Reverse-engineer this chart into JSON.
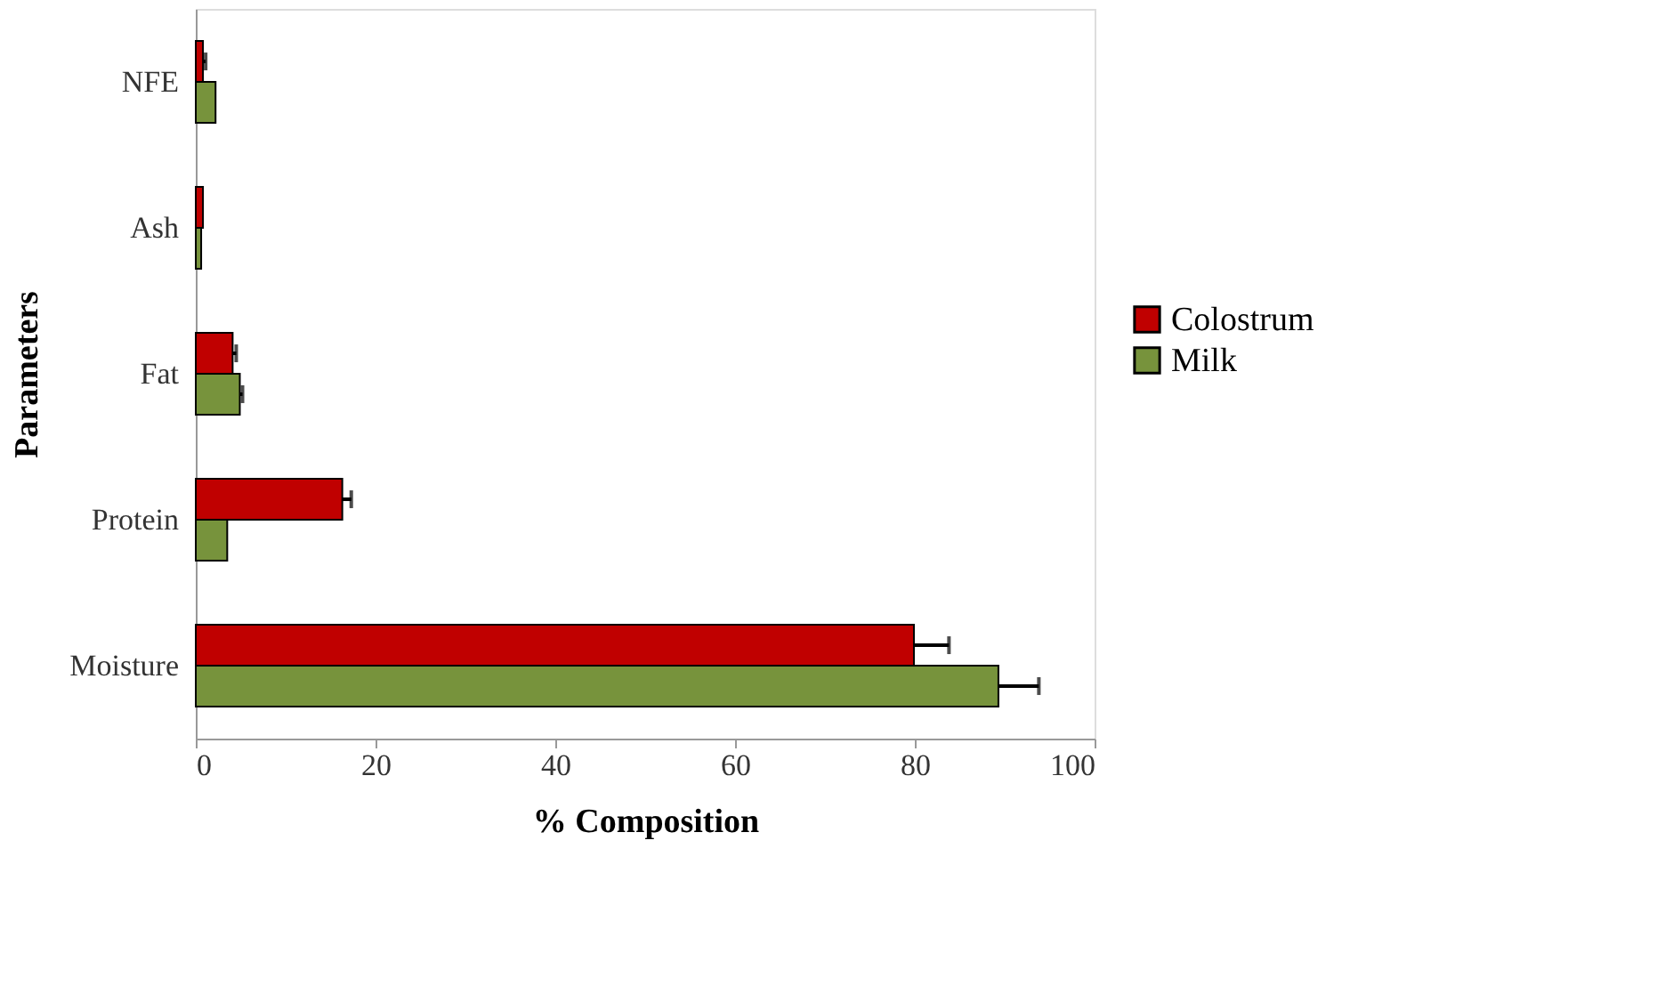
{
  "chart_data": {
    "type": "bar",
    "orientation": "horizontal",
    "xlabel": "% Composition",
    "ylabel": "Parameters",
    "categories": [
      "NFE",
      "Ash",
      "Fat",
      "Protein",
      "Moisture"
    ],
    "series": [
      {
        "name": "Colostrum",
        "color": "#c00000",
        "values": [
          0.8,
          0.8,
          4.1,
          16.3,
          79.9
        ],
        "errors": [
          [
            0.8,
            1.1
          ],
          null,
          [
            4.1,
            4.5
          ],
          [
            16.3,
            17.3
          ],
          [
            79.9,
            83.8
          ]
        ]
      },
      {
        "name": "Milk",
        "color": "#77933c",
        "values": [
          2.2,
          0.6,
          4.9,
          3.5,
          89.3
        ],
        "errors": [
          null,
          null,
          [
            4.9,
            5.2
          ],
          null,
          [
            89.3,
            93.8
          ]
        ]
      }
    ],
    "xlim": [
      0,
      100
    ],
    "xticks": [
      0,
      20,
      40,
      60,
      80,
      100
    ],
    "grid": false,
    "legend": "right"
  }
}
